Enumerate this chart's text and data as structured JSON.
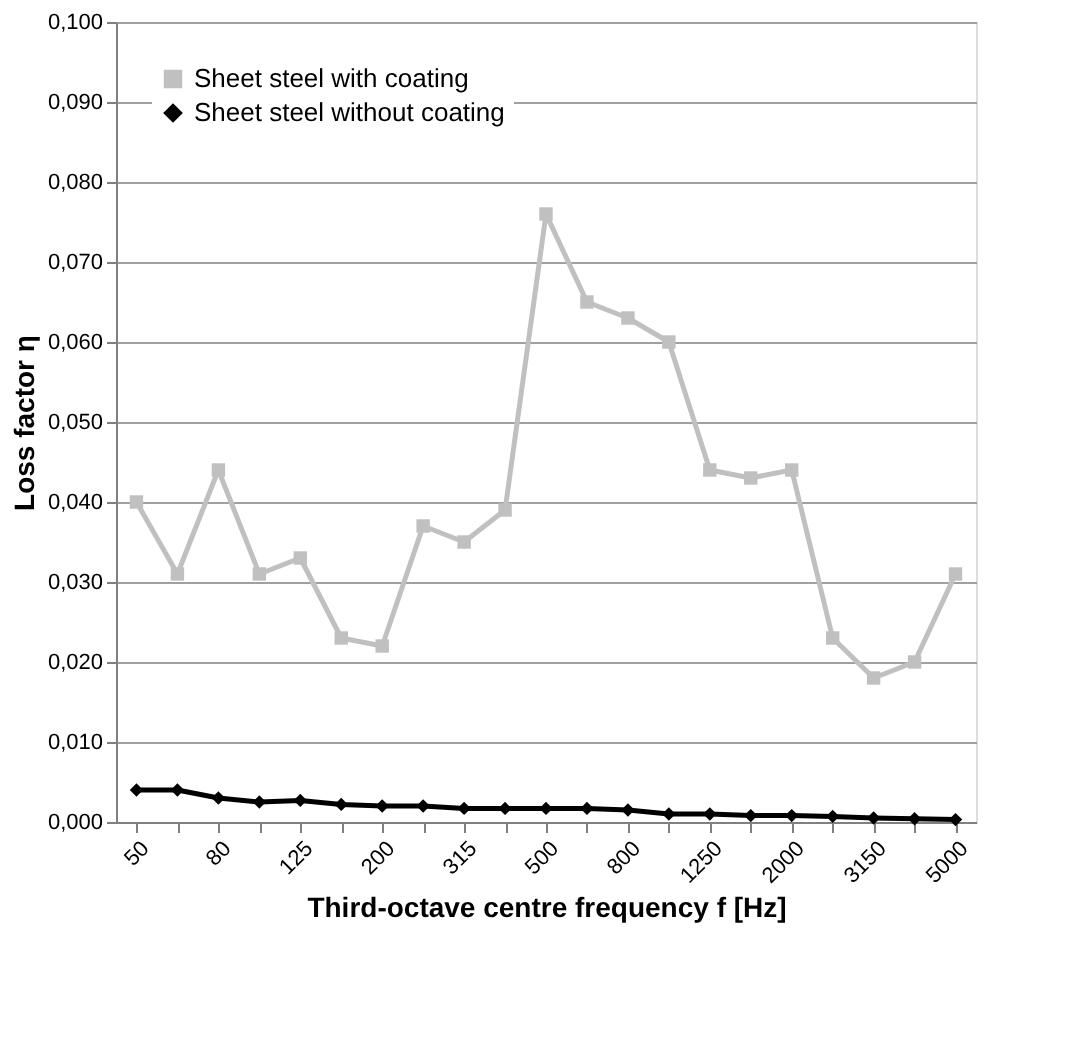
{
  "chart_data": {
    "type": "line",
    "xlabel": "Third-octave centre frequency f [Hz]",
    "ylabel": "Loss factor η",
    "categories": [
      "50",
      null,
      "80",
      null,
      "125",
      null,
      "200",
      null,
      "315",
      null,
      "500",
      null,
      "800",
      null,
      "1250",
      null,
      "2000",
      null,
      "3150",
      null,
      "5000"
    ],
    "series": [
      {
        "name": "Sheet steel with coating",
        "color": "#c0c0c0",
        "marker": "square",
        "values": [
          0.04,
          0.031,
          0.044,
          0.031,
          0.033,
          0.023,
          0.022,
          0.037,
          0.035,
          0.039,
          0.076,
          0.065,
          0.063,
          0.06,
          0.044,
          0.043,
          0.044,
          0.023,
          0.018,
          0.02,
          0.031
        ]
      },
      {
        "name": "Sheet steel without coating",
        "color": "#000000",
        "marker": "diamond",
        "values": [
          0.004,
          0.004,
          0.003,
          0.0025,
          0.0027,
          0.0022,
          0.002,
          0.002,
          0.0017,
          0.0017,
          0.0017,
          0.0017,
          0.0015,
          0.001,
          0.001,
          0.0008,
          0.0008,
          0.0007,
          0.0005,
          0.0004,
          0.0003
        ]
      }
    ],
    "ylim": [
      0,
      0.1
    ],
    "yticks": [
      {
        "value": 0,
        "label": "0,000"
      },
      {
        "value": 0.01,
        "label": "0,010"
      },
      {
        "value": 0.02,
        "label": "0,020"
      },
      {
        "value": 0.03,
        "label": "0,030"
      },
      {
        "value": 0.04,
        "label": "0,040"
      },
      {
        "value": 0.05,
        "label": "0,050"
      },
      {
        "value": 0.06,
        "label": "0,060"
      },
      {
        "value": 0.07,
        "label": "0,070"
      },
      {
        "value": 0.08,
        "label": "0,080"
      },
      {
        "value": 0.09,
        "label": "0,090"
      },
      {
        "value": 0.1,
        "label": "0,100"
      }
    ],
    "grid": "y",
    "legend": "top left",
    "line_style": "solid"
  }
}
